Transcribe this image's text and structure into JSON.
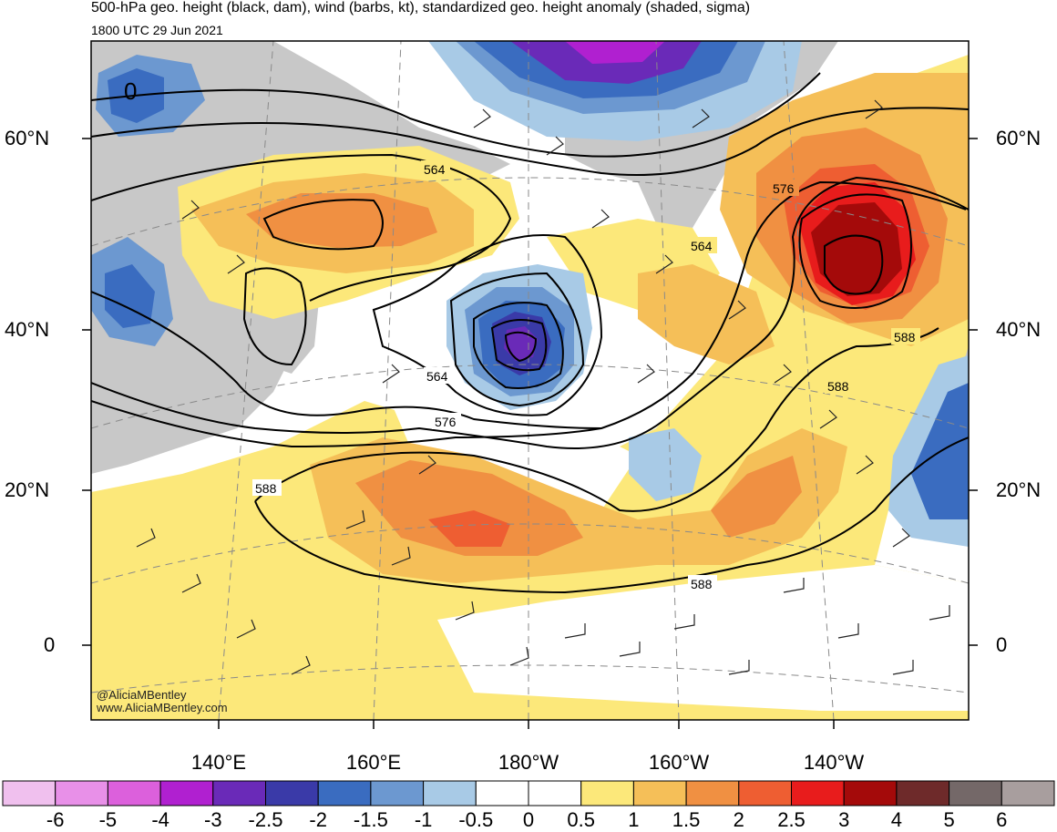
{
  "title": "500-hPa geo. height (black, dam), wind (barbs, kt), standardized geo. height anomaly (shaded, sigma)",
  "subtitle": "1800 UTC 29 Jun 2021",
  "lat_labels": [
    "60°N",
    "40°N",
    "20°N",
    "0"
  ],
  "lon_labels": [
    "140°E",
    "160°E",
    "180°W",
    "160°W",
    "140°W"
  ],
  "contour_labels": [
    "564",
    "576",
    "564",
    "564",
    "576",
    "588",
    "588",
    "588",
    "588"
  ],
  "colorbar": {
    "labels": [
      "-6",
      "-5",
      "-4",
      "-3",
      "-2.5",
      "-2",
      "-1.5",
      "-1",
      "-0.5",
      "0",
      "0.5",
      "1",
      "1.5",
      "2",
      "2.5",
      "3",
      "4",
      "5",
      "6"
    ],
    "colors": [
      "#f0c0ee",
      "#e890e8",
      "#dc60dc",
      "#b020d0",
      "#6a2ab8",
      "#3a3aa8",
      "#3a6cc0",
      "#6c98d0",
      "#a8cae6",
      "#ffffff",
      "#ffffff",
      "#fce87a",
      "#f5bf58",
      "#f09042",
      "#ee5e32",
      "#e81c1c",
      "#a40a0a",
      "#6e2a2a",
      "#746868",
      "#a89e9e"
    ]
  },
  "credits": [
    "@AliciaMBentley",
    "www.AliciaMBentley.com"
  ]
}
